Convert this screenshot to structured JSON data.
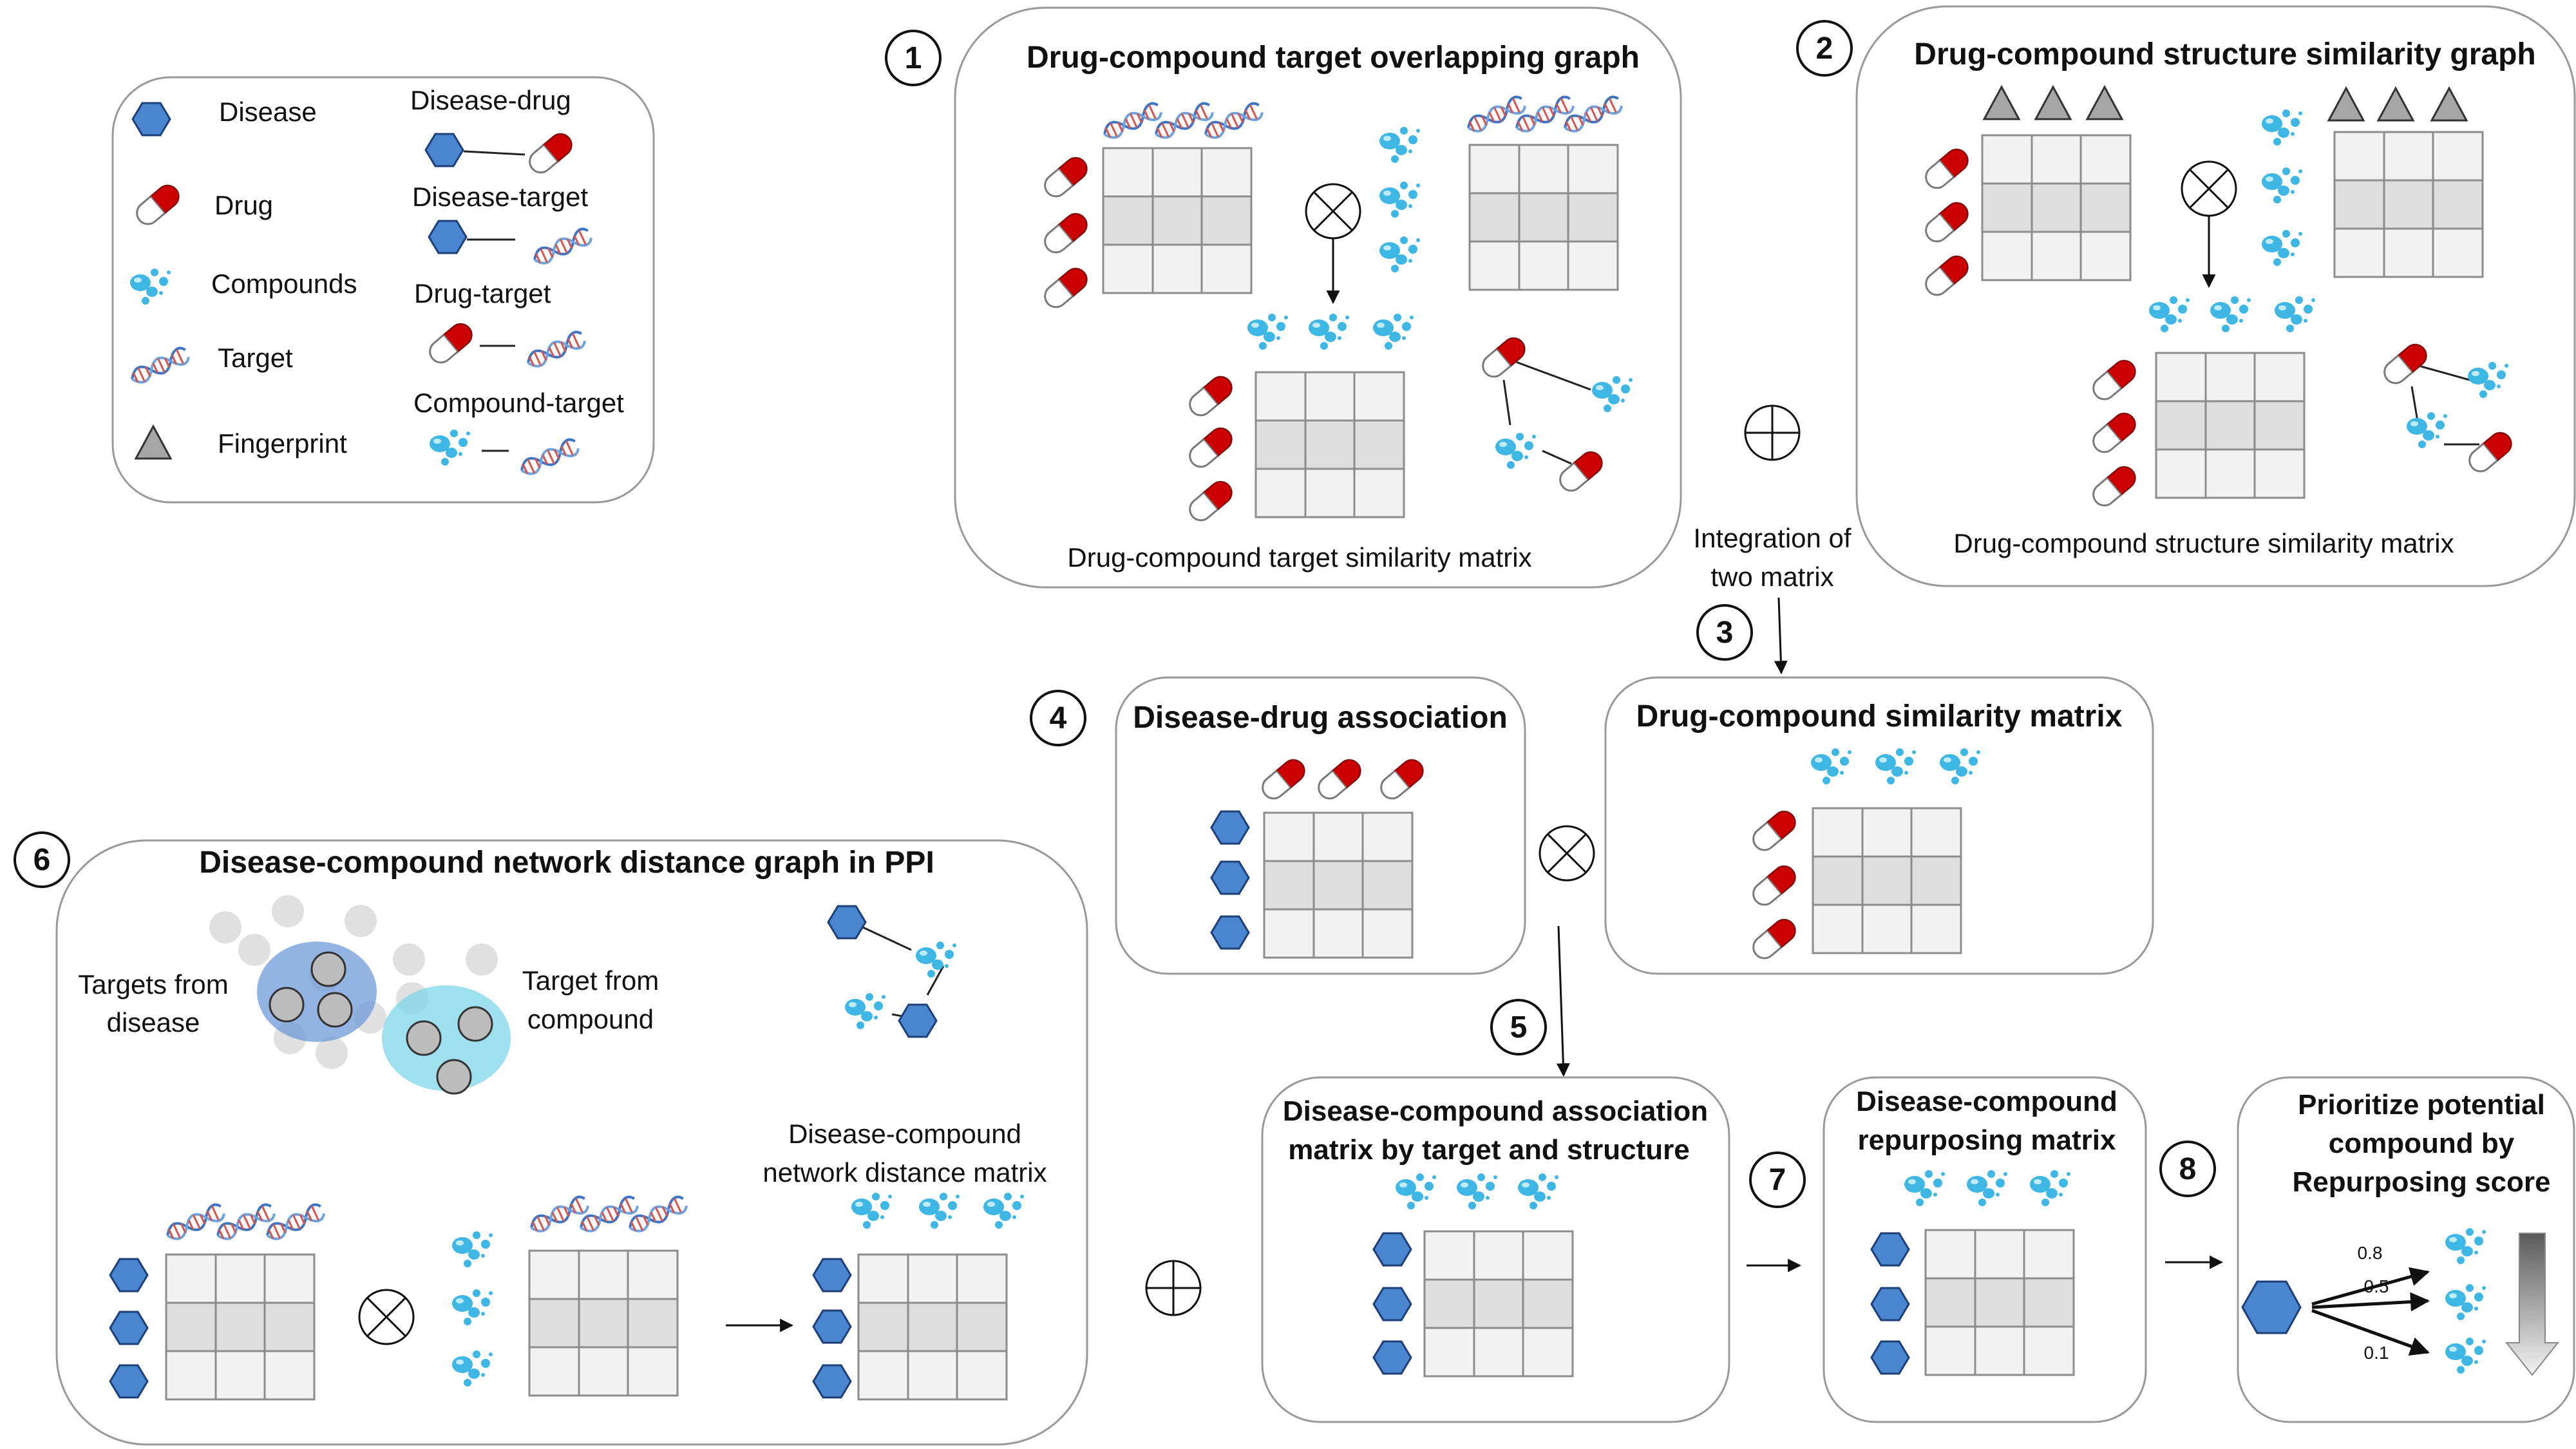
{
  "legend": {
    "disease": "Disease",
    "drug": "Drug",
    "compounds": "Compounds",
    "target": "Target",
    "fingerprint": "Fingerprint",
    "disease_drug": "Disease-drug",
    "disease_target": "Disease-target",
    "drug_target": "Drug-target",
    "compound_target": "Compound-target"
  },
  "panel1": {
    "step": "1",
    "title": "Drug-compound target overlapping graph",
    "caption": "Drug-compound target similarity matrix"
  },
  "panel2": {
    "step": "2",
    "title": "Drug-compound structure similarity graph",
    "caption": "Drug-compound structure similarity matrix"
  },
  "integration": {
    "line1": "Integration of",
    "line2": "two matrix"
  },
  "step3": {
    "step": "3"
  },
  "panel4": {
    "step": "4",
    "title": "Disease-drug association"
  },
  "panel_similarity": {
    "title": "Drug-compound similarity matrix"
  },
  "panel5": {
    "step": "5",
    "title_line1": "Disease-compound  association",
    "title_line2": "matrix by target and structure"
  },
  "panel6": {
    "step": "6",
    "title": "Disease-compound network distance graph in PPI",
    "targets_disease_line1": "Targets from",
    "targets_disease_line2": "disease",
    "target_compound_line1": "Target from",
    "target_compound_line2": "compound",
    "matrix_label_line1": "Disease-compound",
    "matrix_label_line2": "network distance matrix"
  },
  "panel7": {
    "step": "7",
    "title_line1": "Disease-compound",
    "title_line2": "repurposing matrix"
  },
  "panel8": {
    "step": "8",
    "title_line1": "Prioritize potential",
    "title_line2": "compound by",
    "title_line3": "Repurposing score",
    "scores": [
      "0.8",
      "0.5",
      "0.1"
    ]
  },
  "colors": {
    "hexagon": "#4a86cf",
    "capsule_red": "#cc0000",
    "compound_blue": "#3fb7e4",
    "grid_fill": "#f2f2f2",
    "grid_mid": "#dedede",
    "triangle": "#a6a6a6",
    "disease_blob": "#6f9ad8",
    "compound_blob": "#7fd6ea"
  }
}
